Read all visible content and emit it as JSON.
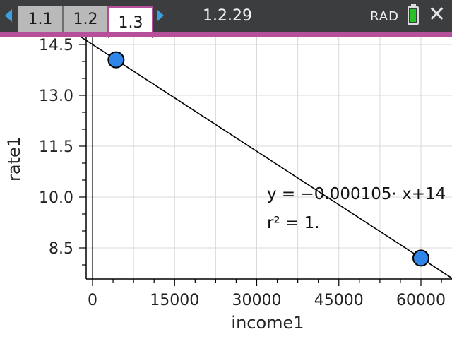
{
  "topbar": {
    "tabs": [
      {
        "label": "1.1",
        "active": false
      },
      {
        "label": "1.2",
        "active": false
      },
      {
        "label": "1.3",
        "active": true
      }
    ],
    "title": "1.2.29",
    "angle_mode": "RAD",
    "icons": {
      "scroll_left": "left-arrow-icon",
      "scroll_right": "right-arrow-icon",
      "battery": "battery-icon",
      "close": "close-icon"
    },
    "colors": {
      "accent": "#b6509a",
      "arrows": "#3aa0e0",
      "battery": "#27c22b"
    }
  },
  "chart_data": {
    "type": "scatter",
    "xlabel": "income1",
    "ylabel": "rate1",
    "x_ticks": [
      "0",
      "15000",
      "30000",
      "45000",
      "60000"
    ],
    "y_ticks": [
      "8.5",
      "10.0",
      "11.5",
      "13.0",
      "14.5"
    ],
    "xlim": [
      -500,
      65000
    ],
    "ylim": [
      7.6,
      14.55
    ],
    "grid": true,
    "points": [
      {
        "x": 4300,
        "y": 14.05
      },
      {
        "x": 60000,
        "y": 8.2
      }
    ],
    "regression": {
      "slope": -0.000105,
      "intercept": 14.5,
      "equation_label": "y = −0.000105· x+14",
      "r2_label": "r² = 1."
    },
    "point_color": "#2f86e8"
  }
}
